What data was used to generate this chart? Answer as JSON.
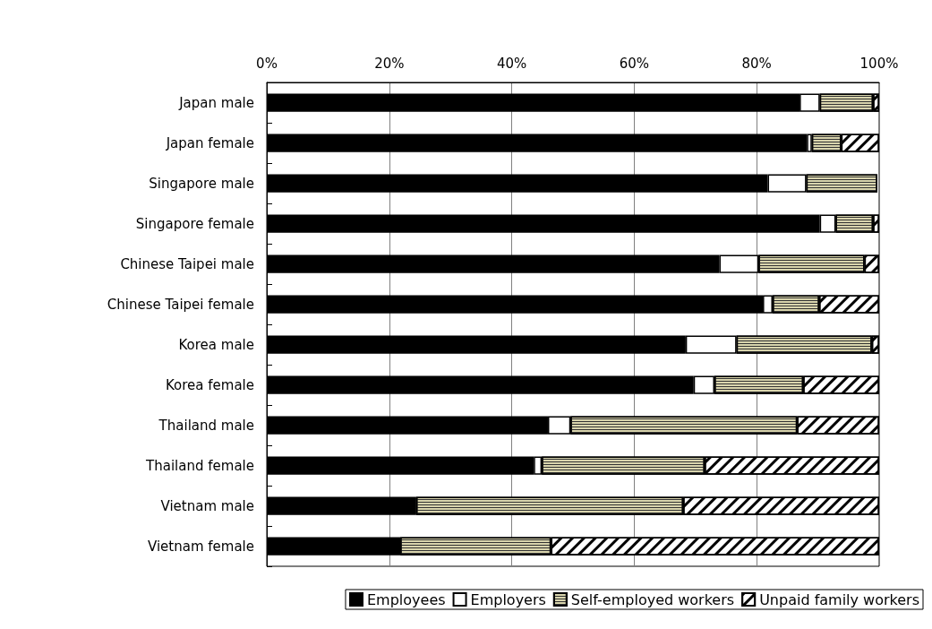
{
  "chart_data": {
    "type": "bar",
    "orientation": "horizontal",
    "stacked": true,
    "categories": [
      "Japan male",
      "Japan female",
      "Singapore male",
      "Singapore female",
      "Chinese Taipei male",
      "Chinese Taipei female",
      "Korea male",
      "Korea female",
      "Thailand male",
      "Thailand female",
      "Vietnam male",
      "Vietnam female"
    ],
    "series": [
      {
        "name": "Employees",
        "color": "#000000",
        "values": [
          87.0,
          88.2,
          81.8,
          90.3,
          73.9,
          81.0,
          68.4,
          69.7,
          45.9,
          43.6,
          24.4,
          21.8
        ]
      },
      {
        "name": "Employers",
        "color": "#ffffff",
        "values": [
          3.3,
          0.8,
          6.3,
          2.6,
          6.4,
          1.6,
          8.3,
          3.4,
          3.7,
          1.3,
          0,
          0
        ]
      },
      {
        "name": "Self-employed workers",
        "color": "#d9d5ad",
        "values": [
          8.7,
          4.8,
          11.6,
          6.1,
          17.3,
          7.6,
          22.1,
          14.5,
          37.0,
          26.6,
          43.6,
          24.6
        ]
      },
      {
        "name": "Unpaid family workers",
        "color": "#ffffff",
        "values": [
          1.0,
          6.2,
          null,
          1.0,
          2.4,
          9.8,
          1.2,
          12.4,
          13.4,
          28.5,
          32.0,
          53.6
        ]
      }
    ],
    "xlim": [
      0,
      100
    ],
    "xticks": [
      {
        "value": 0,
        "label": "0%"
      },
      {
        "value": 20,
        "label": "20%"
      },
      {
        "value": 40,
        "label": "40%"
      },
      {
        "value": 60,
        "label": "60%"
      },
      {
        "value": 80,
        "label": "80%"
      },
      {
        "value": 100,
        "label": "100%"
      }
    ],
    "grid": "x",
    "legend": "bottom"
  }
}
